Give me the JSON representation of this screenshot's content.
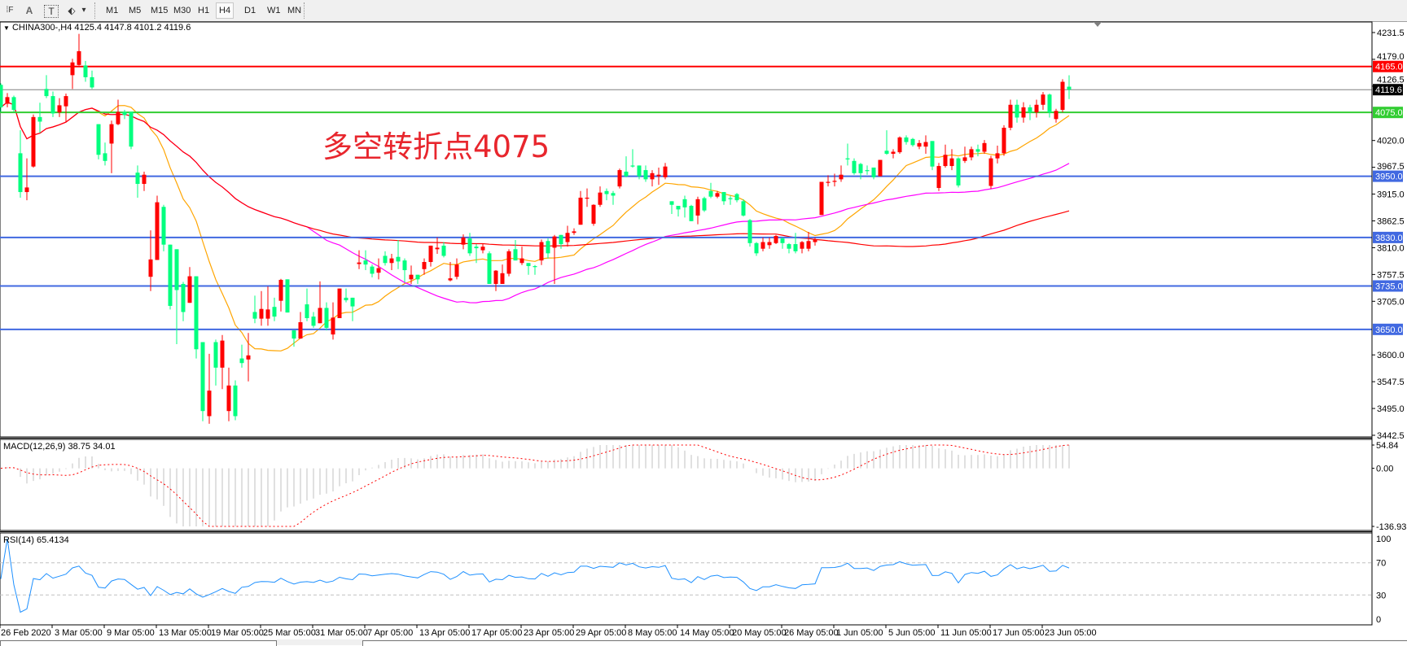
{
  "toolbar": {
    "tools": [
      {
        "icon": "grid-fibo-icon",
        "glyph": "⁞F"
      },
      {
        "icon": "text-label-icon",
        "glyph": "A"
      },
      {
        "icon": "text-box-icon",
        "glyph": "T"
      },
      {
        "icon": "arrows-shapes-icon",
        "glyph": "⬖"
      }
    ],
    "dropdown_glyph": "▾",
    "timeframes": [
      "M1",
      "M5",
      "M15",
      "M30",
      "H1",
      "H4",
      "D1",
      "W1",
      "MN"
    ],
    "active_timeframe": "H4"
  },
  "chart_data": {
    "type": "candlestick",
    "title": "CHINA300-,H4  4125.4 4147.8 4101.2 4119.6",
    "title_marker": "▼",
    "annotation": "多空转折点4075",
    "ylim": [
      3442.5,
      4231.5
    ],
    "y_tick_labels": [
      "4231.5",
      "4179.0",
      "4126.5",
      "4020.0",
      "3967.5",
      "3915.0",
      "3862.5",
      "3810.0",
      "3757.5",
      "3705.0",
      "3600.0",
      "3547.5",
      "3495.0",
      "3442.5"
    ],
    "x_tick_labels": [
      "26 Feb 2020",
      "3 Mar 05:00",
      "9 Mar 05:00",
      "13 Mar 05:00",
      "19 Mar 05:00",
      "25 Mar 05:00",
      "31 Mar 05:00",
      "7 Apr 05:00",
      "13 Apr 05:00",
      "17 Apr 05:00",
      "23 Apr 05:00",
      "29 Apr 05:00",
      "8 May 05:00",
      "14 May 05:00",
      "20 May 05:00",
      "26 May 05:00",
      "1 Jun 05:00",
      "5 Jun 05:00",
      "11 Jun 05:00",
      "17 Jun 05:00",
      "23 Jun 05:00"
    ],
    "bars_ohlc": [
      [
        4129,
        4132,
        4076,
        4085
      ],
      [
        4092,
        4113,
        4085,
        4105
      ],
      [
        4105,
        4108,
        4076,
        4080
      ],
      [
        3995,
        4040,
        3908,
        3919
      ],
      [
        3919,
        3985,
        3903,
        3928
      ],
      [
        3969,
        4071,
        3967,
        4066
      ],
      [
        4066,
        4094,
        4035,
        4057
      ],
      [
        4121,
        4148,
        4103,
        4107
      ],
      [
        4107,
        4116,
        4066,
        4073
      ],
      [
        4075,
        4103,
        4066,
        4089
      ],
      [
        4087,
        4112,
        4057,
        4107
      ],
      [
        4148,
        4180,
        4121,
        4173
      ],
      [
        4168,
        4229,
        4167,
        4195
      ],
      [
        4167,
        4176,
        4135,
        4144
      ],
      [
        4144,
        4157,
        4121,
        4124
      ],
      [
        4052,
        4052,
        3983,
        3992
      ],
      [
        3995,
        4016,
        3971,
        3980
      ],
      [
        4014,
        4059,
        3956,
        4052
      ],
      [
        4052,
        4100,
        4050,
        4076
      ],
      [
        4076,
        4080,
        4062,
        4070
      ],
      [
        4076,
        4076,
        4003,
        4008
      ],
      [
        3957,
        3971,
        3908,
        3935
      ],
      [
        3935,
        3959,
        3921,
        3953
      ],
      [
        3753,
        3844,
        3725,
        3787
      ],
      [
        3786,
        3912,
        3786,
        3899
      ],
      [
        3890,
        3894,
        3803,
        3816
      ],
      [
        3816,
        3816,
        3689,
        3696
      ],
      [
        3807,
        3807,
        3621,
        3727
      ],
      [
        3739,
        3743,
        3666,
        3684
      ],
      [
        3702,
        3772,
        3702,
        3754
      ],
      [
        3754,
        3754,
        3593,
        3611
      ],
      [
        3625,
        3625,
        3470,
        3490
      ],
      [
        3480,
        3602,
        3465,
        3530
      ],
      [
        3625,
        3630,
        3540,
        3575
      ],
      [
        3575,
        3639,
        3533,
        3628
      ],
      [
        3490,
        3575,
        3470,
        3540
      ],
      [
        3540,
        3550,
        3472,
        3480
      ],
      [
        3593,
        3620,
        3575,
        3584
      ],
      [
        3591,
        3643,
        3548,
        3599
      ],
      [
        3684,
        3716,
        3662,
        3671
      ],
      [
        3671,
        3725,
        3657,
        3690
      ],
      [
        3671,
        3734,
        3657,
        3689
      ],
      [
        3694,
        3712,
        3666,
        3675
      ],
      [
        3706,
        3749,
        3685,
        3747
      ],
      [
        3748,
        3748,
        3683,
        3683
      ],
      [
        3648,
        3648,
        3616,
        3632
      ],
      [
        3632,
        3684,
        3632,
        3664
      ],
      [
        3699,
        3730,
        3666,
        3672
      ],
      [
        3675,
        3684,
        3653,
        3657
      ],
      [
        3662,
        3744,
        3662,
        3692
      ],
      [
        3692,
        3703,
        3648,
        3653
      ],
      [
        3640,
        3703,
        3630,
        3673
      ],
      [
        3672,
        3730,
        3672,
        3730
      ],
      [
        3712,
        3730,
        3703,
        3707
      ],
      [
        3712,
        3712,
        3666,
        3695
      ],
      [
        3778,
        3805,
        3768,
        3781
      ],
      [
        3785,
        3805,
        3766,
        3777
      ],
      [
        3773,
        3777,
        3752,
        3759
      ],
      [
        3761,
        3789,
        3748,
        3770
      ],
      [
        3794,
        3803,
        3775,
        3780
      ],
      [
        3780,
        3798,
        3766,
        3789
      ],
      [
        3792,
        3825,
        3768,
        3783
      ],
      [
        3785,
        3789,
        3742,
        3766
      ],
      [
        3748,
        3775,
        3739,
        3757
      ],
      [
        3757,
        3757,
        3739,
        3748
      ],
      [
        3768,
        3789,
        3757,
        3782
      ],
      [
        3782,
        3814,
        3773,
        3814
      ],
      [
        3807,
        3830,
        3798,
        3810
      ],
      [
        3814,
        3821,
        3791,
        3794
      ],
      [
        3746,
        3782,
        3744,
        3750
      ],
      [
        3753,
        3789,
        3748,
        3777
      ],
      [
        3816,
        3836,
        3807,
        3830
      ],
      [
        3828,
        3839,
        3794,
        3799
      ],
      [
        3812,
        3817,
        3780,
        3809
      ],
      [
        3805,
        3817,
        3799,
        3812
      ],
      [
        3799,
        3803,
        3739,
        3739
      ],
      [
        3739,
        3766,
        3725,
        3765
      ],
      [
        3739,
        3777,
        3739,
        3760
      ],
      [
        3759,
        3807,
        3754,
        3803
      ],
      [
        3807,
        3825,
        3785,
        3785
      ],
      [
        3780,
        3812,
        3776,
        3789
      ],
      [
        3780,
        3780,
        3757,
        3774
      ],
      [
        3774,
        3776,
        3757,
        3772
      ],
      [
        3785,
        3826,
        3776,
        3821
      ],
      [
        3823,
        3828,
        3789,
        3799
      ],
      [
        3810,
        3835,
        3739,
        3832
      ],
      [
        3835,
        3835,
        3808,
        3817
      ],
      [
        3821,
        3853,
        3812,
        3839
      ],
      [
        3839,
        3848,
        3835,
        3842
      ],
      [
        3855,
        3921,
        3855,
        3908
      ],
      [
        3906,
        3926,
        3890,
        3908
      ],
      [
        3857,
        3895,
        3853,
        3894
      ],
      [
        3894,
        3930,
        3890,
        3918
      ],
      [
        3921,
        3926,
        3903,
        3915
      ],
      [
        3917,
        3921,
        3894,
        3912
      ],
      [
        3930,
        3965,
        3926,
        3962
      ],
      [
        3959,
        3989,
        3948,
        3950
      ],
      [
        3971,
        4003,
        3967,
        3969
      ],
      [
        3971,
        3971,
        3944,
        3950
      ],
      [
        3962,
        3971,
        3939,
        3944
      ],
      [
        3944,
        3962,
        3930,
        3956
      ],
      [
        3950,
        3967,
        3933,
        3953
      ],
      [
        3948,
        3976,
        3944,
        3969
      ],
      [
        3901,
        3901,
        3876,
        3894
      ],
      [
        3892,
        3892,
        3871,
        3885
      ],
      [
        3905,
        3912,
        3869,
        3889
      ],
      [
        3892,
        3894,
        3862,
        3862
      ],
      [
        3873,
        3910,
        3856,
        3905
      ],
      [
        3907,
        3910,
        3880,
        3883
      ],
      [
        3921,
        3937,
        3907,
        3910
      ],
      [
        3910,
        3921,
        3907,
        3917
      ],
      [
        3919,
        3919,
        3894,
        3901
      ],
      [
        3907,
        3912,
        3894,
        3905
      ],
      [
        3915,
        3917,
        3899,
        3903
      ],
      [
        3901,
        3905,
        3871,
        3873
      ],
      [
        3864,
        3866,
        3812,
        3819
      ],
      [
        3819,
        3821,
        3794,
        3799
      ],
      [
        3808,
        3830,
        3803,
        3821
      ],
      [
        3815,
        3830,
        3808,
        3821
      ],
      [
        3819,
        3835,
        3817,
        3833
      ],
      [
        3828,
        3830,
        3808,
        3819
      ],
      [
        3817,
        3819,
        3799,
        3808
      ],
      [
        3817,
        3839,
        3799,
        3803
      ],
      [
        3808,
        3823,
        3799,
        3821
      ],
      [
        3808,
        3841,
        3803,
        3823
      ],
      [
        3821,
        3830,
        3814,
        3826
      ],
      [
        3874,
        3939,
        3874,
        3939
      ],
      [
        3937,
        3952,
        3930,
        3939
      ],
      [
        3939,
        3955,
        3930,
        3941
      ],
      [
        3944,
        3971,
        3939,
        3953
      ],
      [
        3985,
        4014,
        3971,
        3983
      ],
      [
        3980,
        3985,
        3953,
        3956
      ],
      [
        3974,
        3976,
        3944,
        3956
      ],
      [
        3962,
        3971,
        3953,
        3960
      ],
      [
        3967,
        3967,
        3944,
        3948
      ],
      [
        3950,
        3982,
        3950,
        3982
      ],
      [
        4000,
        4040,
        3992,
        3994
      ],
      [
        3994,
        4003,
        3985,
        3998
      ],
      [
        3997,
        4028,
        3994,
        4026
      ],
      [
        4026,
        4030,
        4012,
        4017
      ],
      [
        4023,
        4025,
        4008,
        4011
      ],
      [
        4008,
        4021,
        4003,
        4015
      ],
      [
        4008,
        4030,
        3994,
        4017
      ],
      [
        4019,
        4019,
        3962,
        3969
      ],
      [
        3927,
        3976,
        3921,
        3970
      ],
      [
        3970,
        4012,
        3967,
        3992
      ],
      [
        3970,
        4003,
        3962,
        3985
      ],
      [
        3985,
        3987,
        3928,
        3932
      ],
      [
        3980,
        4008,
        3976,
        3987
      ],
      [
        3987,
        4008,
        3981,
        4003
      ],
      [
        4003,
        4012,
        3989,
        3998
      ],
      [
        3998,
        4021,
        3994,
        4015
      ],
      [
        3931,
        3990,
        3925,
        3985
      ],
      [
        3985,
        4010,
        3975,
        3995
      ],
      [
        3995,
        4050,
        3990,
        4045
      ],
      [
        4045,
        4100,
        4040,
        4090
      ],
      [
        4090,
        4100,
        4055,
        4065
      ],
      [
        4065,
        4095,
        4055,
        4085
      ],
      [
        4085,
        4090,
        4060,
        4075
      ],
      [
        4075,
        4100,
        4065,
        4090
      ],
      [
        4090,
        4115,
        4080,
        4110
      ],
      [
        4110,
        4112,
        4065,
        4075
      ],
      [
        4062,
        4082,
        4055,
        4078
      ],
      [
        4080,
        4140,
        4075,
        4135
      ],
      [
        4125.4,
        4147.8,
        4101.2,
        4119.6
      ]
    ],
    "horizontal_lines": [
      {
        "value": 4165.0,
        "label": "4165.0",
        "color": "#ff0000"
      },
      {
        "value": 4075.0,
        "label": "4075.0",
        "color": "#32cd32"
      },
      {
        "value": 3950.0,
        "label": "3950.0",
        "color": "#4169e1"
      },
      {
        "value": 3830.0,
        "label": "3830.0",
        "color": "#4169e1"
      },
      {
        "value": 3735.0,
        "label": "3735.0",
        "color": "#4169e1"
      },
      {
        "value": 3650.0,
        "label": "3650.0",
        "color": "#4169e1"
      }
    ],
    "current_price": {
      "value": 4119.6,
      "label": "4119.6",
      "line_color": "#808080",
      "box_color": "#000000"
    },
    "moving_average_colors": [
      "#ffa500",
      "#ff00ff",
      "#ff0000"
    ],
    "colors": {
      "bull": "#ff0000",
      "bear": "#00ff7f"
    },
    "macd": {
      "label": "MACD(12,26,9) 38.75 34.01",
      "ylim": [
        -136.93,
        54.84
      ],
      "tick_labels": [
        "54.84",
        "0.00",
        "-136.93"
      ],
      "histogram_color": "#c0c0c0",
      "signal_color": "#ff0000"
    },
    "rsi": {
      "label": "RSI(14) 65.4134",
      "ylim": [
        0,
        100
      ],
      "levels": [
        30,
        70
      ],
      "tick_labels": [
        "100",
        "70",
        "30",
        "0"
      ],
      "line_color": "#1e90ff"
    }
  }
}
